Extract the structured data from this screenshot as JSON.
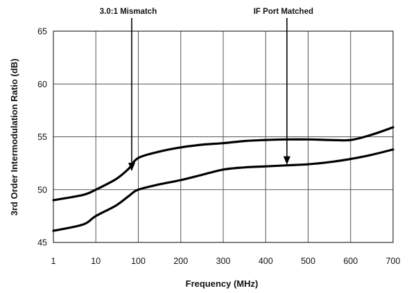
{
  "chart_data": {
    "type": "line",
    "title": "",
    "xlabel": "Frequency (MHz)",
    "ylabel": "3rd Order Intermodulation Ratio (dB)",
    "x_ticks": [
      "1",
      "10",
      "100",
      "200",
      "300",
      "400",
      "500",
      "600",
      "700"
    ],
    "x_tick_positions": [
      0,
      1,
      2,
      3,
      4,
      5,
      6,
      7,
      8
    ],
    "y_ticks": [
      45,
      50,
      55,
      60,
      65
    ],
    "ylim": [
      45,
      65
    ],
    "grid": true,
    "legend": "none",
    "series": [
      {
        "x": [
          1,
          5,
          10,
          30,
          60,
          100,
          150,
          200,
          250,
          300,
          350,
          400,
          450,
          500,
          550,
          600,
          650,
          700
        ],
        "y": [
          49,
          49.5,
          50,
          51,
          52,
          53,
          53.6,
          54,
          54.25,
          54.4,
          54.6,
          54.7,
          54.75,
          54.75,
          54.7,
          54.7,
          55.2,
          55.9
        ]
      },
      {
        "x": [
          1,
          5,
          10,
          30,
          60,
          100,
          150,
          200,
          250,
          300,
          350,
          400,
          450,
          500,
          550,
          600,
          650,
          700
        ],
        "y": [
          46.1,
          46.7,
          47.5,
          48.5,
          49.4,
          50,
          50.5,
          50.9,
          51.4,
          51.9,
          52.1,
          52.2,
          52.3,
          52.4,
          52.6,
          52.9,
          53.3,
          53.8
        ]
      }
    ],
    "annotations": [
      {
        "text": "3.0:1 Mismatch",
        "target_x": 70,
        "target_y": 51.7
      },
      {
        "text": "IF Port Matched",
        "target_x": 450,
        "target_y": 52.3
      }
    ],
    "colors": {
      "line": "#000000",
      "grid": "#555555",
      "text": "#111111"
    }
  }
}
